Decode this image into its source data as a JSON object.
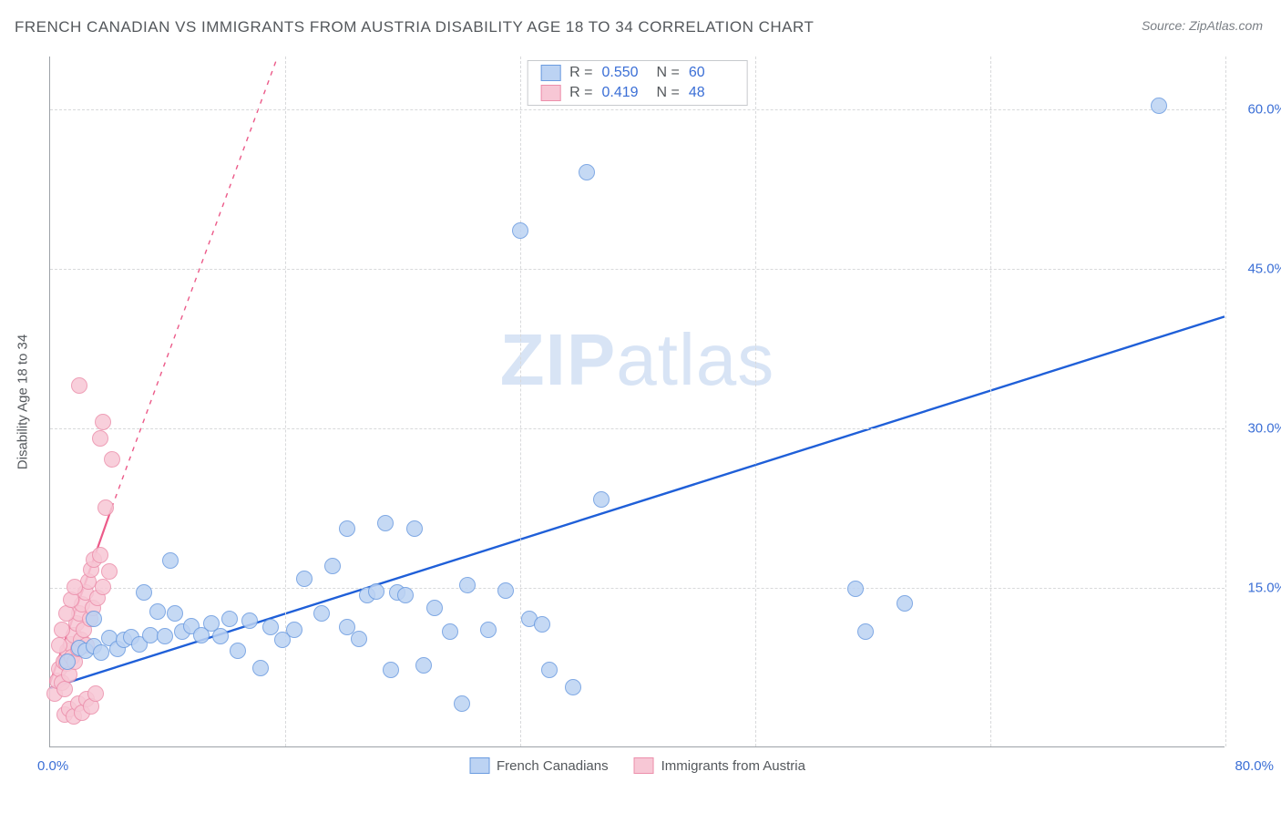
{
  "title": "FRENCH CANADIAN VS IMMIGRANTS FROM AUSTRIA DISABILITY AGE 18 TO 34 CORRELATION CHART",
  "source": "Source: ZipAtlas.com",
  "ylabel": "Disability Age 18 to 34",
  "watermark_bold": "ZIP",
  "watermark_rest": "atlas",
  "chart": {
    "type": "scatter",
    "xlim": [
      0,
      80
    ],
    "ylim": [
      0,
      65
    ],
    "x_tick_labels": {
      "min": "0.0%",
      "max": "80.0%"
    },
    "y_ticks": [
      {
        "v": 15,
        "label": "15.0%"
      },
      {
        "v": 30,
        "label": "30.0%"
      },
      {
        "v": 45,
        "label": "45.0%"
      },
      {
        "v": 60,
        "label": "60.0%"
      }
    ],
    "x_grid": [
      16,
      32,
      48,
      64,
      80
    ],
    "background_color": "#ffffff",
    "grid_color": "#d8d9db",
    "axis_color": "#9da2a8",
    "tick_label_color": "#3b6fd6",
    "marker_radius": 9,
    "marker_stroke_width": 1,
    "series": [
      {
        "id": "french_canadians",
        "label": "French Canadians",
        "color_fill": "#bcd3f3",
        "color_stroke": "#6a9be0",
        "swatch_fill": "#bcd3f3",
        "swatch_border": "#6a9be0",
        "R": "0.550",
        "N": "60",
        "trend": {
          "x1": 0,
          "y1": 5.5,
          "x2": 80,
          "y2": 40.5,
          "color": "#1f5fd8",
          "dashed_extension": false,
          "width": 2.4
        },
        "points": [
          [
            1.2,
            8.0
          ],
          [
            2.0,
            9.3
          ],
          [
            2.4,
            9.0
          ],
          [
            3.0,
            9.4
          ],
          [
            3.5,
            8.8
          ],
          [
            4.0,
            10.2
          ],
          [
            4.6,
            9.2
          ],
          [
            5.0,
            10.0
          ],
          [
            5.5,
            10.3
          ],
          [
            6.1,
            9.6
          ],
          [
            6.8,
            10.5
          ],
          [
            7.3,
            12.7
          ],
          [
            7.8,
            10.4
          ],
          [
            8.5,
            12.5
          ],
          [
            9.0,
            10.8
          ],
          [
            9.6,
            11.3
          ],
          [
            10.3,
            10.5
          ],
          [
            11.0,
            11.6
          ],
          [
            11.6,
            10.4
          ],
          [
            12.2,
            12.0
          ],
          [
            12.8,
            9.0
          ],
          [
            13.6,
            11.8
          ],
          [
            14.3,
            7.4
          ],
          [
            15.0,
            11.2
          ],
          [
            15.8,
            10.0
          ],
          [
            16.6,
            11.0
          ],
          [
            17.3,
            15.8
          ],
          [
            18.5,
            12.5
          ],
          [
            19.2,
            17.0
          ],
          [
            20.2,
            11.2
          ],
          [
            20.2,
            20.5
          ],
          [
            21.0,
            10.1
          ],
          [
            21.6,
            14.2
          ],
          [
            22.2,
            14.6
          ],
          [
            22.8,
            21.0
          ],
          [
            23.2,
            7.2
          ],
          [
            23.6,
            14.5
          ],
          [
            24.2,
            14.2
          ],
          [
            24.8,
            20.5
          ],
          [
            25.4,
            7.6
          ],
          [
            26.2,
            13.0
          ],
          [
            27.2,
            10.8
          ],
          [
            28.0,
            4.0
          ],
          [
            28.4,
            15.2
          ],
          [
            29.8,
            11.0
          ],
          [
            31.0,
            14.7
          ],
          [
            32.6,
            12.0
          ],
          [
            33.5,
            11.5
          ],
          [
            34.0,
            7.2
          ],
          [
            35.6,
            5.6
          ],
          [
            37.5,
            23.2
          ],
          [
            36.5,
            54.0
          ],
          [
            32.0,
            48.5
          ],
          [
            54.8,
            14.8
          ],
          [
            55.5,
            10.8
          ],
          [
            58.2,
            13.5
          ],
          [
            75.5,
            60.3
          ],
          [
            8.2,
            17.5
          ],
          [
            3.0,
            12.0
          ],
          [
            6.4,
            14.5
          ]
        ]
      },
      {
        "id": "immigrants_austria",
        "label": "Immigrants from Austria",
        "color_fill": "#f7c7d5",
        "color_stroke": "#ec8fab",
        "swatch_fill": "#f7c7d5",
        "swatch_border": "#ec8fab",
        "R": "0.419",
        "N": "48",
        "trend": {
          "x1": 0,
          "y1": 6.0,
          "x2": 4.2,
          "y2": 22.5,
          "color": "#ec5a89",
          "dashed_extension": true,
          "ext_x2": 15.5,
          "ext_y2": 65,
          "width": 2.2
        },
        "points": [
          [
            0.3,
            5.0
          ],
          [
            0.5,
            6.2
          ],
          [
            0.6,
            7.3
          ],
          [
            0.8,
            6.0
          ],
          [
            0.9,
            8.0
          ],
          [
            1.0,
            5.4
          ],
          [
            1.1,
            7.8
          ],
          [
            1.2,
            9.0
          ],
          [
            1.3,
            6.8
          ],
          [
            1.4,
            9.6
          ],
          [
            1.5,
            8.4
          ],
          [
            1.6,
            10.5
          ],
          [
            1.7,
            8.0
          ],
          [
            1.8,
            11.6
          ],
          [
            1.9,
            9.2
          ],
          [
            2.0,
            12.5
          ],
          [
            2.1,
            10.0
          ],
          [
            2.2,
            13.4
          ],
          [
            2.3,
            11.0
          ],
          [
            2.4,
            14.5
          ],
          [
            2.5,
            9.5
          ],
          [
            2.6,
            15.5
          ],
          [
            2.7,
            12.0
          ],
          [
            2.8,
            16.6
          ],
          [
            2.9,
            13.0
          ],
          [
            3.0,
            17.6
          ],
          [
            3.2,
            14.0
          ],
          [
            3.4,
            18.0
          ],
          [
            3.6,
            15.0
          ],
          [
            3.8,
            22.5
          ],
          [
            4.0,
            16.5
          ],
          [
            4.2,
            27.0
          ],
          [
            1.0,
            3.0
          ],
          [
            1.3,
            3.5
          ],
          [
            1.6,
            2.8
          ],
          [
            1.9,
            4.0
          ],
          [
            2.2,
            3.2
          ],
          [
            2.5,
            4.5
          ],
          [
            2.8,
            3.8
          ],
          [
            3.1,
            5.0
          ],
          [
            2.0,
            34.0
          ],
          [
            3.4,
            29.0
          ],
          [
            3.6,
            30.5
          ],
          [
            0.6,
            9.5
          ],
          [
            0.8,
            11.0
          ],
          [
            1.1,
            12.5
          ],
          [
            1.4,
            13.8
          ],
          [
            1.7,
            15.0
          ]
        ]
      }
    ]
  },
  "stat_legend_labels": {
    "R": "R =",
    "N": "N ="
  },
  "bottom_legend_order": [
    "french_canadians",
    "immigrants_austria"
  ]
}
